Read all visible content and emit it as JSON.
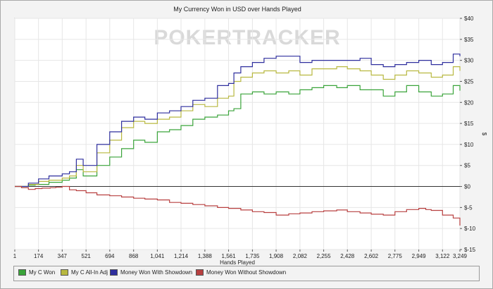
{
  "chart_data": {
    "type": "line",
    "title": "My Currency Won in USD over Hands Played",
    "xlabel": "Hands Played",
    "ylabel": "$",
    "watermark": "POKERTRACKER",
    "x_ticks": [
      1,
      174,
      347,
      521,
      694,
      868,
      1041,
      1214,
      1388,
      1561,
      1735,
      1908,
      2082,
      2255,
      2428,
      2602,
      2775,
      2949,
      3122,
      3249
    ],
    "xlim": [
      1,
      3249
    ],
    "y_tick_labels": [
      "$40",
      "$35",
      "$30",
      "$25",
      "$20",
      "$15",
      "$10",
      "$5",
      "$0",
      "$-5",
      "$-10",
      "$-15"
    ],
    "y_ticks": [
      40,
      35,
      30,
      25,
      20,
      15,
      10,
      5,
      0,
      -5,
      -10,
      -15
    ],
    "ylim": [
      -15,
      40
    ],
    "legend_position": "bottom",
    "series": [
      {
        "name": "My C Won",
        "color": "#3aa43a",
        "points": [
          [
            1,
            0
          ],
          [
            100,
            0.3
          ],
          [
            150,
            0.5
          ],
          [
            250,
            1
          ],
          [
            347,
            1.5
          ],
          [
            400,
            2
          ],
          [
            450,
            4
          ],
          [
            500,
            2.5
          ],
          [
            600,
            5
          ],
          [
            694,
            7
          ],
          [
            780,
            9
          ],
          [
            868,
            11
          ],
          [
            950,
            10.5
          ],
          [
            1041,
            13
          ],
          [
            1130,
            13.5
          ],
          [
            1214,
            14.5
          ],
          [
            1300,
            16
          ],
          [
            1388,
            16.5
          ],
          [
            1480,
            17
          ],
          [
            1561,
            18
          ],
          [
            1600,
            18.5
          ],
          [
            1650,
            22
          ],
          [
            1735,
            22.5
          ],
          [
            1820,
            22
          ],
          [
            1908,
            22.5
          ],
          [
            2000,
            22
          ],
          [
            2082,
            23
          ],
          [
            2170,
            23.5
          ],
          [
            2255,
            24
          ],
          [
            2350,
            23.5
          ],
          [
            2428,
            24
          ],
          [
            2520,
            23
          ],
          [
            2602,
            23
          ],
          [
            2690,
            21.5
          ],
          [
            2775,
            22.5
          ],
          [
            2860,
            24
          ],
          [
            2949,
            22.5
          ],
          [
            3040,
            21.5
          ],
          [
            3122,
            22
          ],
          [
            3200,
            24
          ],
          [
            3249,
            22.8
          ]
        ]
      },
      {
        "name": "My C All-In Adj",
        "color": "#b8b840",
        "points": [
          [
            1,
            0
          ],
          [
            100,
            0.5
          ],
          [
            174,
            1.2
          ],
          [
            250,
            1.5
          ],
          [
            347,
            2
          ],
          [
            400,
            2.5
          ],
          [
            450,
            5
          ],
          [
            500,
            3.5
          ],
          [
            600,
            8
          ],
          [
            694,
            11
          ],
          [
            780,
            14
          ],
          [
            868,
            15.5
          ],
          [
            950,
            15
          ],
          [
            1041,
            16
          ],
          [
            1130,
            16.5
          ],
          [
            1214,
            18
          ],
          [
            1300,
            19.5
          ],
          [
            1388,
            19
          ],
          [
            1480,
            21
          ],
          [
            1561,
            21.5
          ],
          [
            1600,
            25
          ],
          [
            1650,
            26
          ],
          [
            1735,
            27
          ],
          [
            1820,
            27.5
          ],
          [
            1908,
            27
          ],
          [
            2000,
            27.5
          ],
          [
            2082,
            26.5
          ],
          [
            2170,
            28
          ],
          [
            2255,
            28
          ],
          [
            2350,
            28.5
          ],
          [
            2428,
            28
          ],
          [
            2520,
            27.5
          ],
          [
            2602,
            26.5
          ],
          [
            2690,
            25.5
          ],
          [
            2775,
            26.5
          ],
          [
            2860,
            27.5
          ],
          [
            2949,
            27
          ],
          [
            3040,
            26
          ],
          [
            3122,
            26.5
          ],
          [
            3200,
            28.5
          ],
          [
            3249,
            27.5
          ]
        ]
      },
      {
        "name": "Money Won With Showdown",
        "color": "#2f2f9e",
        "points": [
          [
            1,
            0
          ],
          [
            100,
            0.8
          ],
          [
            174,
            1.8
          ],
          [
            250,
            2.5
          ],
          [
            347,
            3
          ],
          [
            400,
            3.5
          ],
          [
            450,
            6.5
          ],
          [
            500,
            5
          ],
          [
            600,
            10
          ],
          [
            694,
            13
          ],
          [
            780,
            15.5
          ],
          [
            868,
            16.5
          ],
          [
            950,
            16
          ],
          [
            1041,
            17.5
          ],
          [
            1130,
            18
          ],
          [
            1214,
            19
          ],
          [
            1300,
            20.5
          ],
          [
            1388,
            21
          ],
          [
            1480,
            24
          ],
          [
            1561,
            24.5
          ],
          [
            1600,
            27
          ],
          [
            1650,
            28.5
          ],
          [
            1735,
            29.5
          ],
          [
            1820,
            30.5
          ],
          [
            1908,
            31
          ],
          [
            2000,
            31
          ],
          [
            2082,
            29.5
          ],
          [
            2170,
            30
          ],
          [
            2255,
            30
          ],
          [
            2350,
            30
          ],
          [
            2428,
            30
          ],
          [
            2520,
            30.5
          ],
          [
            2602,
            29
          ],
          [
            2690,
            28.5
          ],
          [
            2775,
            29
          ],
          [
            2860,
            29.5
          ],
          [
            2949,
            30
          ],
          [
            3040,
            29
          ],
          [
            3122,
            29.5
          ],
          [
            3200,
            31.5
          ],
          [
            3249,
            31
          ]
        ]
      },
      {
        "name": "Money Won Without Showdown",
        "color": "#b84040",
        "points": [
          [
            1,
            0
          ],
          [
            50,
            -0.3
          ],
          [
            100,
            -0.7
          ],
          [
            150,
            -0.5
          ],
          [
            200,
            -0.4
          ],
          [
            260,
            -0.3
          ],
          [
            300,
            -0.2
          ],
          [
            347,
            0
          ],
          [
            400,
            -0.8
          ],
          [
            450,
            -1
          ],
          [
            521,
            -1.5
          ],
          [
            600,
            -2
          ],
          [
            694,
            -2.2
          ],
          [
            780,
            -2.5
          ],
          [
            868,
            -2.8
          ],
          [
            950,
            -3
          ],
          [
            1041,
            -3.2
          ],
          [
            1130,
            -3.8
          ],
          [
            1214,
            -4
          ],
          [
            1300,
            -4.3
          ],
          [
            1388,
            -4.6
          ],
          [
            1480,
            -5
          ],
          [
            1561,
            -5.2
          ],
          [
            1650,
            -5.6
          ],
          [
            1735,
            -6
          ],
          [
            1820,
            -6.2
          ],
          [
            1908,
            -6.8
          ],
          [
            2000,
            -6.5
          ],
          [
            2082,
            -6.3
          ],
          [
            2170,
            -6
          ],
          [
            2255,
            -5.8
          ],
          [
            2350,
            -5.6
          ],
          [
            2428,
            -6
          ],
          [
            2520,
            -6.3
          ],
          [
            2602,
            -6.6
          ],
          [
            2690,
            -6.8
          ],
          [
            2775,
            -6
          ],
          [
            2860,
            -5.5
          ],
          [
            2949,
            -5.2
          ],
          [
            3000,
            -5.5
          ],
          [
            3040,
            -5.7
          ],
          [
            3122,
            -6.8
          ],
          [
            3200,
            -7.5
          ],
          [
            3249,
            -9.3
          ]
        ]
      }
    ]
  }
}
